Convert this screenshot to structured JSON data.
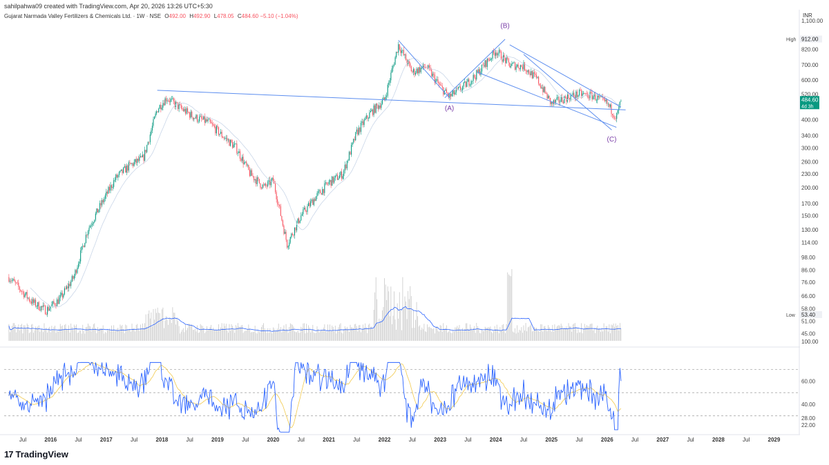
{
  "header": {
    "created_by": "sahilpahwa09 created with TradingView.com, Apr 20, 2026 13:26 UTC+5:30",
    "symbol": "Gujarat Narmada Valley Fertilizers & Chemicals Ltd. · 1W · NSE",
    "o_label": "O",
    "o_value": "492.00",
    "h_label": "H",
    "h_value": "492.90",
    "l_label": "L",
    "l_value": "478.05",
    "c_label": "C",
    "c_value": "484.60",
    "change": "−5.10 (−1.04%)",
    "currency": "INR"
  },
  "brand": {
    "logo_mark": "17",
    "logo_text": "TradingView"
  },
  "colors": {
    "up": "#089981",
    "down": "#f7525f",
    "trendline": "#5b8def",
    "wave_label": "#7b3fa8",
    "rsi": "#2962ff",
    "rsi_ma": "#f2c94c",
    "volume": "#c8c8c8",
    "badge": "#089981"
  },
  "chart_data": {
    "type": "candlestick",
    "price_scale": "log",
    "ylim": [
      40,
      1100
    ],
    "price_ticks": [
      "1,100.00",
      "912.00",
      "820.00",
      "700.00",
      "600.00",
      "520.00",
      "460.00",
      "400.00",
      "340.00",
      "300.00",
      "260.00",
      "230.00",
      "200.00",
      "170.00",
      "150.00",
      "130.00",
      "114.00",
      "98.00",
      "86.00",
      "76.00",
      "66.00",
      "58.00",
      "51.00",
      "45.00"
    ],
    "high_label": "High",
    "high_value": "912.00",
    "low_label": "Low",
    "low_value": "53.40",
    "last_price": "484.60",
    "time_to_close": "4d 3h",
    "x_ticks": [
      "Jul",
      "2016",
      "Jul",
      "2017",
      "Jul",
      "2018",
      "Jul",
      "2019",
      "Jul",
      "2020",
      "Jul",
      "2021",
      "Jul",
      "2022",
      "Jul",
      "2023",
      "Jul",
      "2024",
      "Jul",
      "2025",
      "Jul",
      "2026",
      "Jul",
      "2027",
      "Jul",
      "2028",
      "Jul",
      "2029"
    ],
    "price_path": [
      [
        "2015-04",
        80
      ],
      [
        "2015-09",
        62
      ],
      [
        "2015-12",
        57
      ],
      [
        "2016-03",
        64
      ],
      [
        "2016-06",
        80
      ],
      [
        "2016-09",
        130
      ],
      [
        "2016-12",
        170
      ],
      [
        "2017-03",
        220
      ],
      [
        "2017-06",
        250
      ],
      [
        "2017-09",
        270
      ],
      [
        "2017-12",
        445
      ],
      [
        "2018-02",
        500
      ],
      [
        "2018-05",
        450
      ],
      [
        "2018-08",
        410
      ],
      [
        "2018-11",
        390
      ],
      [
        "2019-02",
        340
      ],
      [
        "2019-05",
        300
      ],
      [
        "2019-08",
        230
      ],
      [
        "2019-11",
        200
      ],
      [
        "2020-01",
        215
      ],
      [
        "2020-04",
        112
      ],
      [
        "2020-07",
        150
      ],
      [
        "2020-10",
        180
      ],
      [
        "2021-01",
        210
      ],
      [
        "2021-04",
        230
      ],
      [
        "2021-07",
        350
      ],
      [
        "2021-10",
        430
      ],
      [
        "2022-01",
        490
      ],
      [
        "2022-04",
        860
      ],
      [
        "2022-07",
        650
      ],
      [
        "2022-10",
        690
      ],
      [
        "2023-01",
        560
      ],
      [
        "2023-03",
        505
      ],
      [
        "2023-06",
        560
      ],
      [
        "2023-09",
        640
      ],
      [
        "2024-01",
        810
      ],
      [
        "2024-04",
        700
      ],
      [
        "2024-07",
        690
      ],
      [
        "2024-10",
        600
      ],
      [
        "2025-01",
        470
      ],
      [
        "2025-04",
        500
      ],
      [
        "2025-07",
        520
      ],
      [
        "2025-10",
        510
      ],
      [
        "2026-01",
        470
      ],
      [
        "2026-03",
        410
      ],
      [
        "2026-04",
        484.6
      ]
    ],
    "annotations": [
      {
        "label": "(A)",
        "date": "2023-03",
        "price": 440
      },
      {
        "label": "(B)",
        "date": "2024-03",
        "price": 1020
      },
      {
        "label": "(C)",
        "date": "2026-02",
        "price": 320
      }
    ],
    "trendlines": [
      {
        "from": [
          "2017-12",
          540
        ],
        "to": [
          "2026-05",
          442
        ]
      },
      {
        "from": [
          "2022-04",
          900
        ],
        "to": [
          "2023-03",
          500
        ]
      },
      {
        "from": [
          "2023-02",
          500
        ],
        "to": [
          "2024-03",
          910
        ]
      },
      {
        "from": [
          "2023-09",
          650
        ],
        "to": [
          "2026-03",
          370
        ]
      },
      {
        "from": [
          "2024-04",
          860
        ],
        "to": [
          "2026-04",
          455
        ]
      },
      {
        "from": [
          "2024-07",
          780
        ],
        "to": [
          "2026-02",
          360
        ]
      }
    ],
    "volume_scale_label": "100.00",
    "rsi": {
      "ticks": [
        "60.00",
        "40.00",
        "28.00",
        "22.00"
      ],
      "upper_band": 70,
      "lower_band": 30,
      "last": 60
    }
  }
}
